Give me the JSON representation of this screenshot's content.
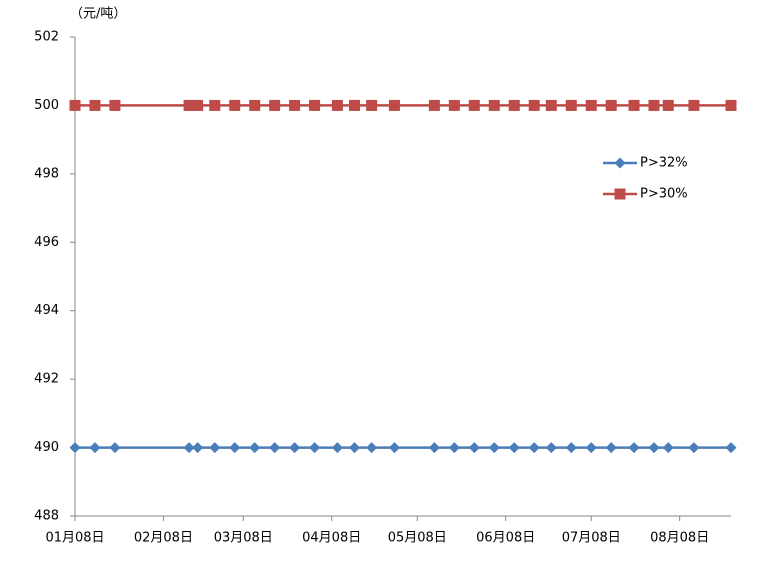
{
  "chart_data": {
    "type": "line",
    "y_axis_label": "（元/吨）",
    "x": [
      8,
      15,
      22,
      48,
      51,
      57,
      64,
      71,
      78,
      85,
      92,
      100,
      106,
      112,
      120,
      134,
      141,
      148,
      155,
      162,
      169,
      175,
      182,
      189,
      196,
      204,
      211,
      216,
      225,
      238
    ],
    "series": [
      {
        "name": "P>32%",
        "color": "#4a7ebb",
        "marker": "diamond",
        "values": [
          490,
          490,
          490,
          490,
          490,
          490,
          490,
          490,
          490,
          490,
          490,
          490,
          490,
          490,
          490,
          490,
          490,
          490,
          490,
          490,
          490,
          490,
          490,
          490,
          490,
          490,
          490,
          490,
          490,
          490
        ]
      },
      {
        "name": "P>30%",
        "color": "#be4b48",
        "marker": "square",
        "values": [
          500,
          500,
          500,
          500,
          500,
          500,
          500,
          500,
          500,
          500,
          500,
          500,
          500,
          500,
          500,
          500,
          500,
          500,
          500,
          500,
          500,
          500,
          500,
          500,
          500,
          500,
          500,
          500,
          500,
          500
        ]
      }
    ],
    "xlim": [
      8,
      238
    ],
    "xticks": [
      {
        "value": 8,
        "label": "01月08日"
      },
      {
        "value": 39,
        "label": "02月08日"
      },
      {
        "value": 67,
        "label": "03月08日"
      },
      {
        "value": 98,
        "label": "04月08日"
      },
      {
        "value": 128,
        "label": "05月08日"
      },
      {
        "value": 159,
        "label": "06月08日"
      },
      {
        "value": 189,
        "label": "07月08日"
      },
      {
        "value": 220,
        "label": "08月08日"
      }
    ],
    "ylim": [
      488,
      502
    ],
    "yticks": [
      488,
      490,
      492,
      494,
      496,
      498,
      500,
      502
    ],
    "grid": false,
    "legend": "right"
  }
}
